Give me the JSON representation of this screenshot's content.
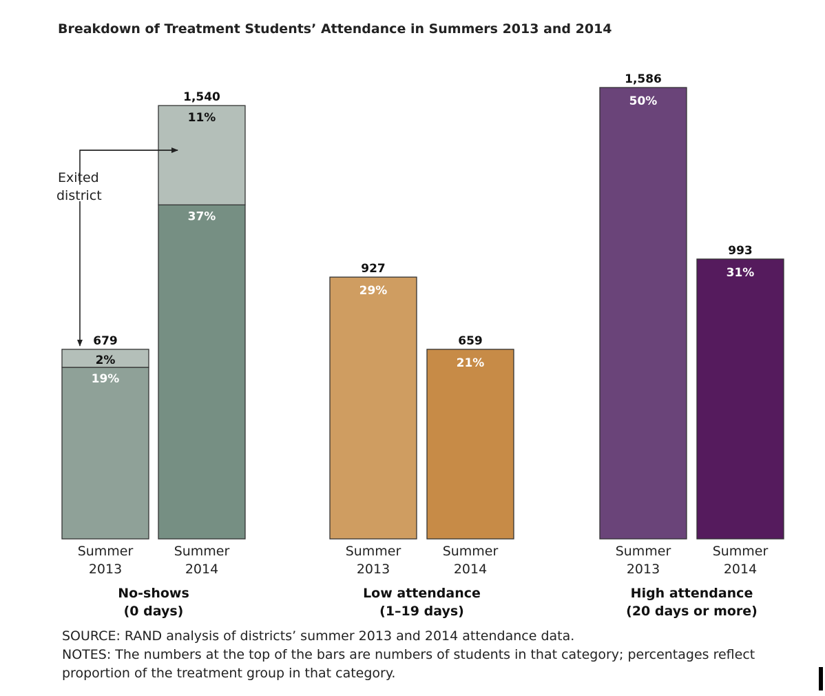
{
  "chart_data": {
    "type": "bar",
    "title": "Breakdown of Treatment Students’ Attendance in Summers 2013 and 2014",
    "groups": [
      {
        "label": [
          "No-shows",
          "(0 days)"
        ],
        "bars": [
          {
            "x_label": [
              "Summer",
              "2013"
            ],
            "count": "679",
            "segments": [
              {
                "pct": 19,
                "label": "19%",
                "color": "#8fa198"
              },
              {
                "pct": 2,
                "label": "2%",
                "color": "#b4bfb9"
              }
            ]
          },
          {
            "x_label": [
              "Summer",
              "2014"
            ],
            "count": "1,540",
            "segments": [
              {
                "pct": 37,
                "label": "37%",
                "color": "#768f83"
              },
              {
                "pct": 11,
                "label": "11%",
                "color": "#b4bfb9"
              }
            ]
          }
        ]
      },
      {
        "label": [
          "Low attendance",
          "(1–19 days)"
        ],
        "bars": [
          {
            "x_label": [
              "Summer",
              "2013"
            ],
            "count": "927",
            "segments": [
              {
                "pct": 29,
                "label": "29%",
                "color": "#cf9d61"
              }
            ]
          },
          {
            "x_label": [
              "Summer",
              "2014"
            ],
            "count": "659",
            "segments": [
              {
                "pct": 21,
                "label": "21%",
                "color": "#c78b47"
              }
            ]
          }
        ]
      },
      {
        "label": [
          "High attendance",
          "(20 days or more)"
        ],
        "bars": [
          {
            "x_label": [
              "Summer",
              "2013"
            ],
            "count": "1,586",
            "segments": [
              {
                "pct": 50,
                "label": "50%",
                "color": "#6a4479"
              }
            ]
          },
          {
            "x_label": [
              "Summer",
              "2014"
            ],
            "count": "993",
            "segments": [
              {
                "pct": 31,
                "label": "31%",
                "color": "#551b5d"
              }
            ]
          }
        ]
      }
    ],
    "annotation": {
      "text": [
        "Exited",
        "district"
      ]
    },
    "notes": [
      "SOURCE: RAND analysis of districts’ summer 2013 and 2014 attendance data.",
      "NOTES: The numbers at the top of the bars are numbers of students in that category; percentages reflect",
      "proportion of the treatment group in that category."
    ]
  }
}
